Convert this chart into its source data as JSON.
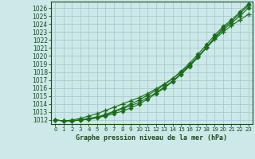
{
  "title": "Graphe pression niveau de la mer (hPa)",
  "bg_color": "#cce8e8",
  "grid_color": "#aacccc",
  "line_color": "#1a6b1a",
  "marker_color": "#1a6b1a",
  "xlim": [
    -0.5,
    23.5
  ],
  "ylim": [
    1011.5,
    1026.8
  ],
  "yticks": [
    1012,
    1013,
    1014,
    1015,
    1016,
    1017,
    1018,
    1019,
    1020,
    1021,
    1022,
    1023,
    1024,
    1025,
    1026
  ],
  "xticks": [
    0,
    1,
    2,
    3,
    4,
    5,
    6,
    7,
    8,
    9,
    10,
    11,
    12,
    13,
    14,
    15,
    16,
    17,
    18,
    19,
    20,
    21,
    22,
    23
  ],
  "series": [
    [
      1012.0,
      1011.9,
      1011.9,
      1012.0,
      1012.1,
      1012.3,
      1012.5,
      1012.8,
      1013.1,
      1013.5,
      1014.0,
      1014.6,
      1015.3,
      1016.0,
      1016.8,
      1017.7,
      1018.7,
      1019.8,
      1021.0,
      1022.2,
      1023.3,
      1024.1,
      1025.0,
      1026.0
    ],
    [
      1012.0,
      1011.9,
      1012.0,
      1012.2,
      1012.5,
      1012.8,
      1013.2,
      1013.6,
      1014.0,
      1014.4,
      1014.8,
      1015.3,
      1015.9,
      1016.5,
      1017.2,
      1018.0,
      1018.9,
      1019.9,
      1021.0,
      1022.1,
      1023.0,
      1023.8,
      1024.5,
      1025.2
    ],
    [
      1012.0,
      1011.9,
      1011.9,
      1012.0,
      1012.1,
      1012.3,
      1012.6,
      1013.0,
      1013.4,
      1013.8,
      1014.2,
      1014.8,
      1015.4,
      1016.1,
      1016.9,
      1017.8,
      1018.8,
      1019.9,
      1021.1,
      1022.3,
      1023.5,
      1024.3,
      1025.3,
      1026.3
    ],
    [
      1012.0,
      1011.9,
      1011.9,
      1012.0,
      1012.2,
      1012.4,
      1012.7,
      1013.1,
      1013.5,
      1014.0,
      1014.5,
      1015.1,
      1015.7,
      1016.4,
      1017.2,
      1018.1,
      1019.1,
      1020.2,
      1021.4,
      1022.6,
      1023.7,
      1024.5,
      1025.5,
      1026.5
    ]
  ]
}
